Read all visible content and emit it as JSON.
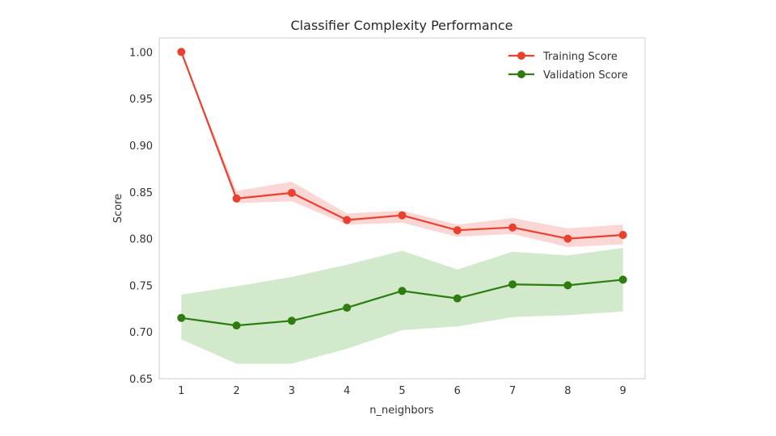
{
  "chart_data": {
    "type": "line",
    "title": "Classifier Complexity Performance",
    "xlabel": "n_neighbors",
    "ylabel": "Score",
    "x": [
      1,
      2,
      3,
      4,
      5,
      6,
      7,
      8,
      9
    ],
    "xlim": [
      0.6,
      9.4
    ],
    "ylim": [
      0.65,
      1.015
    ],
    "xticks": [
      1,
      2,
      3,
      4,
      5,
      6,
      7,
      8,
      9
    ],
    "yticks": [
      0.65,
      0.7,
      0.75,
      0.8,
      0.85,
      0.9,
      0.95,
      1.0
    ],
    "ytick_labels": [
      "0.65",
      "0.70",
      "0.75",
      "0.80",
      "0.85",
      "0.90",
      "0.95",
      "1.00"
    ],
    "grid": false,
    "legend_position": "top-right",
    "series": [
      {
        "name": "Training Score",
        "color": "#e8412f",
        "band_color": "#f4a6a0",
        "values": [
          1.0,
          0.843,
          0.849,
          0.82,
          0.825,
          0.809,
          0.812,
          0.8,
          0.804
        ],
        "lower": [
          1.0,
          0.838,
          0.84,
          0.815,
          0.817,
          0.802,
          0.805,
          0.791,
          0.794
        ],
        "upper": [
          1.0,
          0.851,
          0.861,
          0.827,
          0.83,
          0.815,
          0.822,
          0.811,
          0.815
        ]
      },
      {
        "name": "Validation Score",
        "color": "#2e7d10",
        "band_color": "#9ccf8f",
        "values": [
          0.715,
          0.707,
          0.712,
          0.726,
          0.744,
          0.736,
          0.751,
          0.75,
          0.756
        ],
        "lower": [
          0.692,
          0.666,
          0.666,
          0.682,
          0.702,
          0.706,
          0.716,
          0.718,
          0.722
        ],
        "upper": [
          0.74,
          0.749,
          0.759,
          0.772,
          0.787,
          0.767,
          0.786,
          0.782,
          0.79
        ]
      }
    ]
  }
}
